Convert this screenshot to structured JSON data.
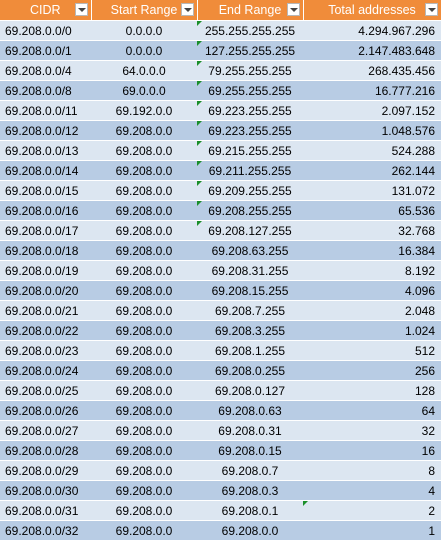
{
  "headers": [
    "CIDR",
    "Start Range",
    "End Range",
    "Total addresses"
  ],
  "rows": [
    [
      "69.208.0.0/0",
      "0.0.0.0",
      "255.255.255.255",
      "4.294.967.296"
    ],
    [
      "69.208.0.0/1",
      "0.0.0.0",
      "127.255.255.255",
      "2.147.483.648"
    ],
    [
      "69.208.0.0/4",
      "64.0.0.0",
      "79.255.255.255",
      "268.435.456"
    ],
    [
      "69.208.0.0/8",
      "69.0.0.0",
      "69.255.255.255",
      "16.777.216"
    ],
    [
      "69.208.0.0/11",
      "69.192.0.0",
      "69.223.255.255",
      "2.097.152"
    ],
    [
      "69.208.0.0/12",
      "69.208.0.0",
      "69.223.255.255",
      "1.048.576"
    ],
    [
      "69.208.0.0/13",
      "69.208.0.0",
      "69.215.255.255",
      "524.288"
    ],
    [
      "69.208.0.0/14",
      "69.208.0.0",
      "69.211.255.255",
      "262.144"
    ],
    [
      "69.208.0.0/15",
      "69.208.0.0",
      "69.209.255.255",
      "131.072"
    ],
    [
      "69.208.0.0/16",
      "69.208.0.0",
      "69.208.255.255",
      "65.536"
    ],
    [
      "69.208.0.0/17",
      "69.208.0.0",
      "69.208.127.255",
      "32.768"
    ],
    [
      "69.208.0.0/18",
      "69.208.0.0",
      "69.208.63.255",
      "16.384"
    ],
    [
      "69.208.0.0/19",
      "69.208.0.0",
      "69.208.31.255",
      "8.192"
    ],
    [
      "69.208.0.0/20",
      "69.208.0.0",
      "69.208.15.255",
      "4.096"
    ],
    [
      "69.208.0.0/21",
      "69.208.0.0",
      "69.208.7.255",
      "2.048"
    ],
    [
      "69.208.0.0/22",
      "69.208.0.0",
      "69.208.3.255",
      "1.024"
    ],
    [
      "69.208.0.0/23",
      "69.208.0.0",
      "69.208.1.255",
      "512"
    ],
    [
      "69.208.0.0/24",
      "69.208.0.0",
      "69.208.0.255",
      "256"
    ],
    [
      "69.208.0.0/25",
      "69.208.0.0",
      "69.208.0.127",
      "128"
    ],
    [
      "69.208.0.0/26",
      "69.208.0.0",
      "69.208.0.63",
      "64"
    ],
    [
      "69.208.0.0/27",
      "69.208.0.0",
      "69.208.0.31",
      "32"
    ],
    [
      "69.208.0.0/28",
      "69.208.0.0",
      "69.208.0.15",
      "16"
    ],
    [
      "69.208.0.0/29",
      "69.208.0.0",
      "69.208.0.7",
      "8"
    ],
    [
      "69.208.0.0/30",
      "69.208.0.0",
      "69.208.0.3",
      "4"
    ],
    [
      "69.208.0.0/31",
      "69.208.0.0",
      "69.208.0.1",
      "2"
    ],
    [
      "69.208.0.0/32",
      "69.208.0.0",
      "69.208.0.0",
      "1"
    ]
  ],
  "end_range_error_indicator_rows": [
    0,
    1,
    2,
    3,
    4,
    5,
    6,
    7,
    8,
    9,
    10
  ],
  "total_error_indicator_rows": [
    24
  ],
  "icons": {
    "filter": "filter-dropdown-icon",
    "error": "error-indicator-icon"
  },
  "colors": {
    "header_bg": "#f08c3a",
    "row_band_light": "#dce6f1",
    "row_band_dark": "#b8cce4",
    "error_indicator": "#1a8f2a"
  }
}
